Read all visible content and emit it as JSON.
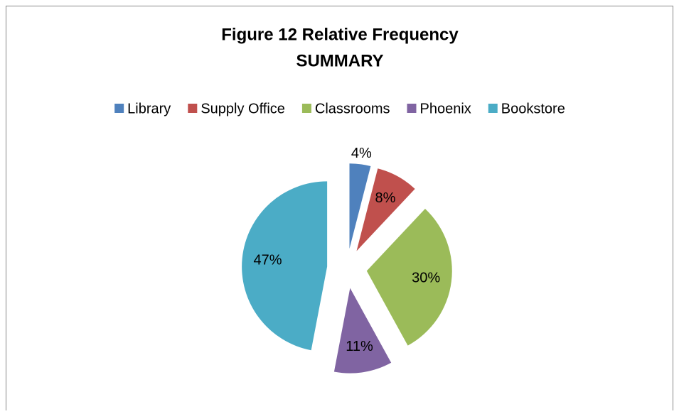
{
  "chart_data": {
    "type": "pie",
    "title": [
      "Figure 12 Relative Frequency",
      "SUMMARY"
    ],
    "categories": [
      "Library",
      "Supply Office",
      "Classrooms",
      "Phoenix",
      "Bookstore"
    ],
    "values": [
      4,
      8,
      30,
      11,
      47
    ],
    "value_labels": [
      "4%",
      "8%",
      "30%",
      "11%",
      "47%"
    ],
    "colors": [
      "#4f81bd",
      "#c0504d",
      "#9bbb59",
      "#8064a2",
      "#4bacc6"
    ],
    "legend": "top",
    "exploded": true
  }
}
